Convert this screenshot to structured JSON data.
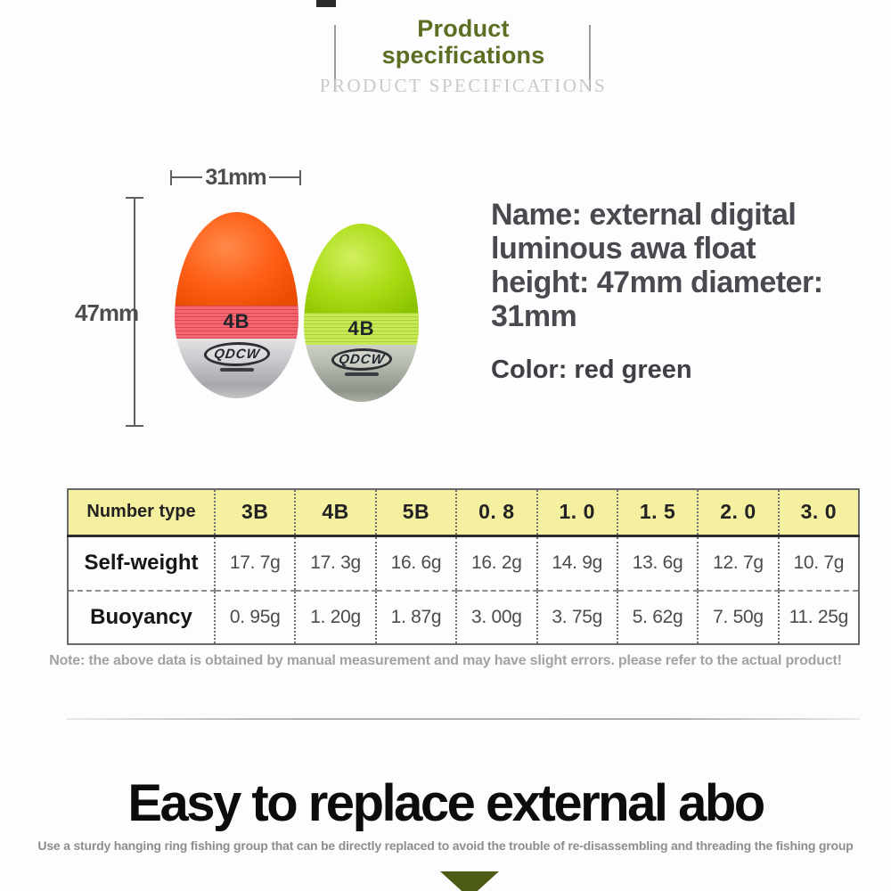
{
  "header": {
    "title_lines": [
      "Product",
      "specifications"
    ],
    "subtitle": "PRODUCT SPECIFICATIONS",
    "title_color": "#5c6e22"
  },
  "product": {
    "width_label": "31mm",
    "height_label": "47mm",
    "float_size_label": "4B",
    "brand": "QDCW",
    "float_colors": {
      "left_orange": "#fe5f17",
      "right_green": "#a8db12"
    },
    "name_lines": [
      "Name: external digital",
      "luminous awa float",
      "height: 47mm diameter:",
      "31mm"
    ],
    "color_info": "Color: red green"
  },
  "spec_table": {
    "header_label": "Number type",
    "header_bg": "#f5f0a0",
    "columns": [
      "3B",
      "4B",
      "5B",
      "0. 8",
      "1. 0",
      "1. 5",
      "2. 0",
      "3. 0"
    ],
    "rows": [
      {
        "label": "Self-weight",
        "values": [
          "17. 7g",
          "17. 3g",
          "16. 6g",
          "16. 2g",
          "14. 9g",
          "13. 6g",
          "12. 7g",
          "10. 7g"
        ]
      },
      {
        "label": "Buoyancy",
        "values": [
          "0. 95g",
          "1. 20g",
          "1. 87g",
          "3. 00g",
          "3. 75g",
          "5. 62g",
          "7. 50g",
          "11. 25g"
        ]
      }
    ],
    "note": "Note: the above data is obtained by manual measurement and may have slight errors. please refer to the actual product!"
  },
  "footer": {
    "title": "Easy to replace external abo",
    "subtitle": "Use a sturdy hanging ring fishing group that can be directly replaced to avoid the trouble of re-disassembling and threading the fishing group",
    "triangle_color": "#4d5c14"
  }
}
